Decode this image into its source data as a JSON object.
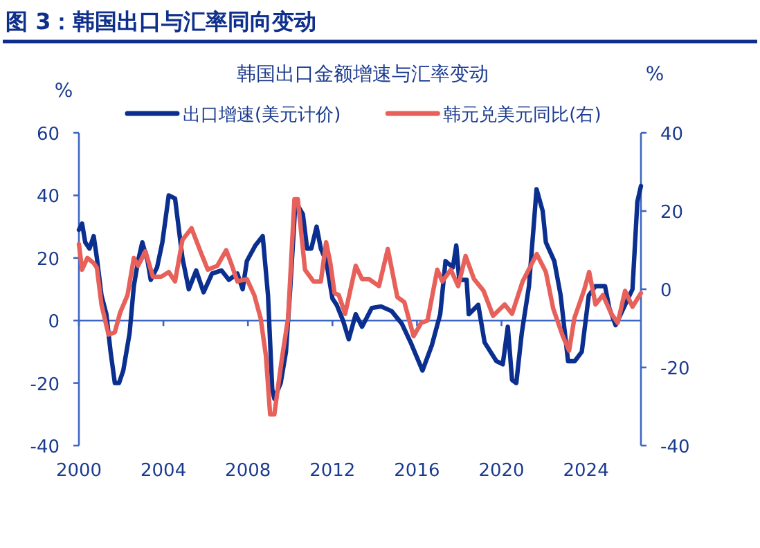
{
  "chart_data": {
    "type": "line",
    "title": "图 3：韩国出口与汇率同向变动",
    "subtitle": "韩国出口金额增速与汇率变动",
    "ylabel": "%",
    "y2label": "%",
    "xlim": [
      2000,
      2026.6
    ],
    "xticks": [
      2000,
      2004,
      2008,
      2012,
      2016,
      2020,
      2024
    ],
    "ylim": [
      -40,
      60
    ],
    "yticks": [
      -40,
      -20,
      0,
      20,
      40,
      60
    ],
    "y2lim": [
      -40,
      40
    ],
    "y2ticks": [
      -40,
      -20,
      0,
      20,
      40
    ],
    "legend": "top",
    "grid": false,
    "ref_lines": [
      {
        "axis": "y",
        "value": 0,
        "color": "#3d66c4"
      }
    ],
    "marker": "none",
    "line_style": "solid",
    "series": [
      {
        "name": "出口增速(美元计价)",
        "color": "#0b2f8f",
        "x": [
          2000.0,
          2000.15,
          2000.3,
          2000.5,
          2000.7,
          2000.85,
          2001.07,
          2001.3,
          2001.5,
          2001.7,
          2001.9,
          2002.1,
          2002.4,
          2002.6,
          2002.8,
          2003.0,
          2003.25,
          2003.4,
          2003.7,
          2003.95,
          2004.25,
          2004.55,
          2004.9,
          2005.2,
          2005.55,
          2005.9,
          2006.3,
          2006.75,
          2007.1,
          2007.5,
          2007.75,
          2007.95,
          2008.35,
          2008.7,
          2008.95,
          2009.15,
          2009.25,
          2009.55,
          2009.8,
          2010.0,
          2010.25,
          2010.6,
          2010.8,
          2011.0,
          2011.25,
          2011.45,
          2011.7,
          2012.0,
          2012.2,
          2012.5,
          2012.77,
          2013.1,
          2013.4,
          2013.86,
          2014.3,
          2014.8,
          2015.28,
          2015.7,
          2016.26,
          2016.7,
          2017.1,
          2017.35,
          2017.7,
          2017.86,
          2018.0,
          2018.35,
          2018.45,
          2018.9,
          2019.2,
          2019.76,
          2020.06,
          2020.3,
          2020.5,
          2020.7,
          2020.96,
          2021.3,
          2021.66,
          2021.95,
          2022.1,
          2022.5,
          2022.8,
          2023.15,
          2023.47,
          2023.8,
          2024.13,
          2024.45,
          2024.9,
          2025.1,
          2025.4,
          2025.85,
          2026.2,
          2026.43,
          2026.6
        ],
        "values": [
          29,
          31,
          25,
          23,
          27,
          20,
          8,
          2,
          -10,
          -20,
          -20,
          -16,
          -4,
          11,
          19,
          25,
          19,
          13,
          17,
          25,
          40,
          39,
          20,
          10,
          16,
          9,
          15,
          16,
          13,
          15,
          10,
          19,
          24,
          27,
          8,
          -22,
          -25,
          -20,
          -10,
          10,
          38,
          34,
          23,
          23,
          30,
          23,
          19,
          7,
          5,
          0,
          -6,
          2,
          -2,
          4,
          4.5,
          3,
          -1,
          -7,
          -16,
          -8,
          2,
          19,
          17,
          24,
          13,
          13,
          2,
          5,
          -7,
          -13,
          -14,
          -2,
          -19,
          -20,
          -4,
          11,
          42,
          35,
          25,
          19,
          8,
          -13,
          -13,
          -10,
          8,
          11,
          11,
          4,
          -1.5,
          5,
          10,
          38,
          43
        ]
      },
      {
        "name": "韩元兑美元同比(右)",
        "color": "#e8605a",
        "axis": "y2",
        "x": [
          2000.0,
          2000.15,
          2000.4,
          2000.7,
          2000.85,
          2001.07,
          2001.4,
          2001.7,
          2001.95,
          2002.3,
          2002.6,
          2002.8,
          2003.15,
          2003.5,
          2003.9,
          2004.25,
          2004.55,
          2004.9,
          2005.33,
          2005.8,
          2006.1,
          2006.55,
          2006.97,
          2007.2,
          2007.5,
          2007.95,
          2008.3,
          2008.6,
          2008.85,
          2009.05,
          2009.25,
          2009.6,
          2009.9,
          2010.2,
          2010.36,
          2010.7,
          2011.1,
          2011.45,
          2011.7,
          2011.9,
          2012.1,
          2012.3,
          2012.6,
          2013.1,
          2013.4,
          2013.73,
          2014.2,
          2014.62,
          2015.07,
          2015.4,
          2015.84,
          2016.2,
          2016.5,
          2016.96,
          2017.2,
          2017.6,
          2017.95,
          2018.3,
          2018.7,
          2019.15,
          2019.6,
          2020.15,
          2020.5,
          2021.0,
          2021.67,
          2022.1,
          2022.45,
          2022.9,
          2023.2,
          2023.45,
          2023.9,
          2024.15,
          2024.45,
          2024.8,
          2025.2,
          2025.5,
          2025.85,
          2026.2,
          2026.6
        ],
        "values": [
          11.5,
          5,
          8,
          6.7,
          5.5,
          -4,
          -11.6,
          -11,
          -6,
          -1.5,
          8,
          6,
          9.7,
          3.2,
          3.2,
          4.4,
          2,
          12.6,
          15.6,
          9,
          5,
          6,
          10,
          6.7,
          2,
          2.6,
          -1.5,
          -7.4,
          -17,
          -32,
          -32,
          -18,
          -7.4,
          23,
          23,
          5,
          2,
          2,
          12,
          6.7,
          -1,
          -1.5,
          -6.3,
          6,
          2.6,
          2.6,
          0.8,
          10.3,
          -2,
          -3.3,
          -12,
          -8.6,
          -8,
          5,
          2,
          5,
          0.8,
          8.5,
          2.6,
          -0.4,
          -6.8,
          -3.9,
          -6.3,
          2,
          9,
          4.4,
          -5,
          -12,
          -15.7,
          -7.4,
          -0.4,
          4.4,
          -3.9,
          -1.5,
          -6.3,
          -8.6,
          -0.4,
          -4.5,
          -1
        ]
      }
    ]
  }
}
